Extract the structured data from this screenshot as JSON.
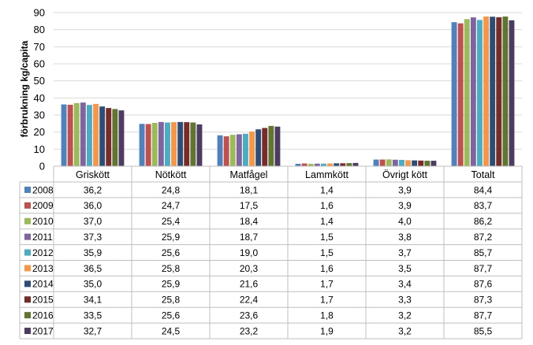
{
  "chart_data": {
    "type": "bar",
    "title": "",
    "xlabel": "",
    "ylabel": "förbrukning kg/capita",
    "ylim": [
      0,
      90
    ],
    "yticks": [
      0,
      10,
      20,
      30,
      40,
      50,
      60,
      70,
      80,
      90
    ],
    "grid": true,
    "legend": "data-table-below",
    "categories": [
      "Griskött",
      "Nötkött",
      "Matfågel",
      "Lammkött",
      "Övrigt kött",
      "Totalt"
    ],
    "series": [
      {
        "name": "2008",
        "color": "#4f81bd",
        "values": [
          36.2,
          24.8,
          18.1,
          1.4,
          3.9,
          84.4
        ],
        "labels": [
          "36,2",
          "24,8",
          "18,1",
          "1,4",
          "3,9",
          "84,4"
        ]
      },
      {
        "name": "2009",
        "color": "#c0504d",
        "values": [
          36.0,
          24.7,
          17.5,
          1.6,
          3.9,
          83.7
        ],
        "labels": [
          "36,0",
          "24,7",
          "17,5",
          "1,6",
          "3,9",
          "83,7"
        ]
      },
      {
        "name": "2010",
        "color": "#9bbb59",
        "values": [
          37.0,
          25.4,
          18.4,
          1.4,
          4.0,
          86.2
        ],
        "labels": [
          "37,0",
          "25,4",
          "18,4",
          "1,4",
          "4,0",
          "86,2"
        ]
      },
      {
        "name": "2011",
        "color": "#8064a2",
        "values": [
          37.3,
          25.9,
          18.7,
          1.5,
          3.8,
          87.2
        ],
        "labels": [
          "37,3",
          "25,9",
          "18,7",
          "1,5",
          "3,8",
          "87,2"
        ]
      },
      {
        "name": "2012",
        "color": "#4bacc6",
        "values": [
          35.9,
          25.6,
          19.0,
          1.5,
          3.7,
          85.7
        ],
        "labels": [
          "35,9",
          "25,6",
          "19,0",
          "1,5",
          "3,7",
          "85,7"
        ]
      },
      {
        "name": "2013",
        "color": "#f79646",
        "values": [
          36.5,
          25.8,
          20.3,
          1.6,
          3.5,
          87.7
        ],
        "labels": [
          "36,5",
          "25,8",
          "20,3",
          "1,6",
          "3,5",
          "87,7"
        ]
      },
      {
        "name": "2014",
        "color": "#2c4d75",
        "values": [
          35.0,
          25.9,
          21.6,
          1.7,
          3.4,
          87.6
        ],
        "labels": [
          "35,0",
          "25,9",
          "21,6",
          "1,7",
          "3,4",
          "87,6"
        ]
      },
      {
        "name": "2015",
        "color": "#772c2a",
        "values": [
          34.1,
          25.8,
          22.4,
          1.7,
          3.3,
          87.3
        ],
        "labels": [
          "34,1",
          "25,8",
          "22,4",
          "1,7",
          "3,3",
          "87,3"
        ]
      },
      {
        "name": "2016",
        "color": "#5f7530",
        "values": [
          33.5,
          25.6,
          23.6,
          1.8,
          3.2,
          87.7
        ],
        "labels": [
          "33,5",
          "25,6",
          "23,6",
          "1,8",
          "3,2",
          "87,7"
        ]
      },
      {
        "name": "2017",
        "color": "#4d3b62",
        "values": [
          32.7,
          24.5,
          23.2,
          1.9,
          3.2,
          85.5
        ],
        "labels": [
          "32,7",
          "24,5",
          "23,2",
          "1,9",
          "3,2",
          "85,5"
        ]
      }
    ]
  }
}
